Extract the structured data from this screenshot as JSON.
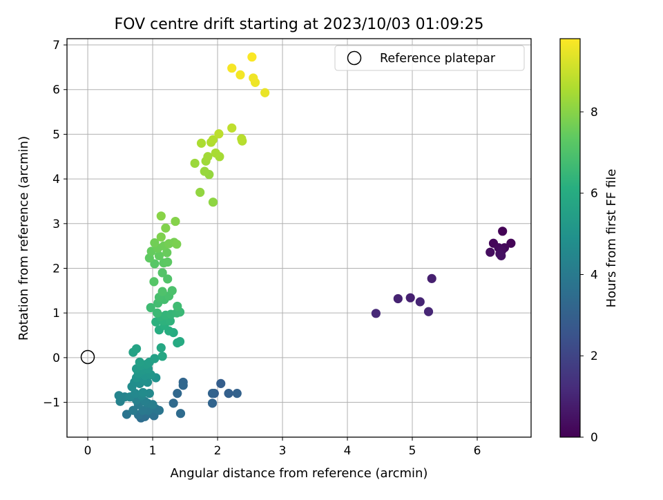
{
  "chart_data": {
    "type": "scatter",
    "title": "FOV centre drift starting at 2023/10/03 01:09:25",
    "xlabel": "Angular distance from reference (arcmin)",
    "ylabel": "Rotation from reference (arcmin)",
    "xlim": [
      -0.32,
      6.83
    ],
    "ylim": [
      -1.78,
      7.14
    ],
    "xticks": [
      {
        "v": 0,
        "label": "0"
      },
      {
        "v": 1,
        "label": "1"
      },
      {
        "v": 2,
        "label": "2"
      },
      {
        "v": 3,
        "label": "3"
      },
      {
        "v": 4,
        "label": "4"
      },
      {
        "v": 5,
        "label": "5"
      },
      {
        "v": 6,
        "label": "6"
      }
    ],
    "yticks": [
      {
        "v": -1,
        "label": "−1"
      },
      {
        "v": 0,
        "label": "0"
      },
      {
        "v": 1,
        "label": "1"
      },
      {
        "v": 2,
        "label": "2"
      },
      {
        "v": 3,
        "label": "3"
      },
      {
        "v": 4,
        "label": "4"
      },
      {
        "v": 5,
        "label": "5"
      },
      {
        "v": 6,
        "label": "6"
      },
      {
        "v": 7,
        "label": "7"
      }
    ],
    "grid": true,
    "legend": {
      "position": "top-right",
      "label": "Reference platepar"
    },
    "reference_point": {
      "x": 0,
      "y": 0
    },
    "colorbar": {
      "label": "Hours from first FF file",
      "colormap": "viridis",
      "range": [
        0,
        9.8
      ],
      "ticks": [
        {
          "v": 0,
          "label": "0"
        },
        {
          "v": 2,
          "label": "2"
        },
        {
          "v": 4,
          "label": "4"
        },
        {
          "v": 6,
          "label": "6"
        },
        {
          "v": 8,
          "label": "8"
        }
      ]
    },
    "points": [
      {
        "x": 6.39,
        "y": 2.83,
        "t": 0.05
      },
      {
        "x": 6.52,
        "y": 2.56,
        "t": 0.1
      },
      {
        "x": 6.25,
        "y": 2.56,
        "t": 0.15
      },
      {
        "x": 6.42,
        "y": 2.46,
        "t": 0.2
      },
      {
        "x": 6.33,
        "y": 2.46,
        "t": 0.25
      },
      {
        "x": 6.38,
        "y": 2.4,
        "t": 0.3
      },
      {
        "x": 6.2,
        "y": 2.36,
        "t": 0.35
      },
      {
        "x": 6.35,
        "y": 2.32,
        "t": 0.4
      },
      {
        "x": 6.37,
        "y": 2.28,
        "t": 0.45
      },
      {
        "x": 5.3,
        "y": 1.77,
        "t": 0.85
      },
      {
        "x": 4.97,
        "y": 1.34,
        "t": 0.9
      },
      {
        "x": 4.78,
        "y": 1.32,
        "t": 0.95
      },
      {
        "x": 5.12,
        "y": 1.25,
        "t": 1.0
      },
      {
        "x": 5.25,
        "y": 1.03,
        "t": 1.05
      },
      {
        "x": 4.44,
        "y": 0.99,
        "t": 1.1
      },
      {
        "x": 2.05,
        "y": -0.58,
        "t": 2.9
      },
      {
        "x": 1.95,
        "y": -0.8,
        "t": 2.95
      },
      {
        "x": 2.17,
        "y": -0.8,
        "t": 3.0
      },
      {
        "x": 2.3,
        "y": -0.8,
        "t": 3.05
      },
      {
        "x": 1.92,
        "y": -0.8,
        "t": 3.1
      },
      {
        "x": 1.92,
        "y": -1.02,
        "t": 3.15
      },
      {
        "x": 1.47,
        "y": -0.55,
        "t": 3.2
      },
      {
        "x": 1.47,
        "y": -0.62,
        "t": 3.25
      },
      {
        "x": 1.38,
        "y": -0.8,
        "t": 3.3
      },
      {
        "x": 1.32,
        "y": -1.02,
        "t": 3.35
      },
      {
        "x": 1.43,
        "y": -1.25,
        "t": 3.4
      },
      {
        "x": 0.82,
        "y": -1.35,
        "t": 3.5
      },
      {
        "x": 0.88,
        "y": -1.32,
        "t": 3.55
      },
      {
        "x": 1.02,
        "y": -1.3,
        "t": 3.6
      },
      {
        "x": 0.97,
        "y": -1.25,
        "t": 3.65
      },
      {
        "x": 0.78,
        "y": -1.28,
        "t": 3.7
      },
      {
        "x": 0.6,
        "y": -1.27,
        "t": 3.75
      },
      {
        "x": 1.1,
        "y": -1.18,
        "t": 3.8
      },
      {
        "x": 1.05,
        "y": -1.15,
        "t": 3.85
      },
      {
        "x": 0.93,
        "y": -1.18,
        "t": 3.9
      },
      {
        "x": 0.85,
        "y": -1.18,
        "t": 3.95
      },
      {
        "x": 0.7,
        "y": -1.18,
        "t": 4.0
      },
      {
        "x": 0.78,
        "y": -1.05,
        "t": 4.05
      },
      {
        "x": 0.92,
        "y": -1.02,
        "t": 4.1
      },
      {
        "x": 1.0,
        "y": -1.05,
        "t": 4.15
      },
      {
        "x": 0.88,
        "y": -0.98,
        "t": 4.2
      },
      {
        "x": 0.75,
        "y": -0.95,
        "t": 4.25
      },
      {
        "x": 0.5,
        "y": -0.98,
        "t": 4.3
      },
      {
        "x": 0.57,
        "y": -0.88,
        "t": 4.35
      },
      {
        "x": 0.48,
        "y": -0.85,
        "t": 4.4
      },
      {
        "x": 0.65,
        "y": -0.88,
        "t": 4.45
      },
      {
        "x": 0.83,
        "y": -0.85,
        "t": 4.5
      },
      {
        "x": 0.73,
        "y": -0.8,
        "t": 4.55
      },
      {
        "x": 0.95,
        "y": -0.8,
        "t": 4.6
      },
      {
        "x": 0.85,
        "y": -0.78,
        "t": 4.65
      },
      {
        "x": 0.68,
        "y": -0.65,
        "t": 4.7
      },
      {
        "x": 0.72,
        "y": -0.55,
        "t": 4.75
      },
      {
        "x": 0.8,
        "y": -0.58,
        "t": 4.8
      },
      {
        "x": 0.92,
        "y": -0.55,
        "t": 4.85
      },
      {
        "x": 0.85,
        "y": -0.48,
        "t": 4.9
      },
      {
        "x": 1.05,
        "y": -0.45,
        "t": 4.95
      },
      {
        "x": 0.75,
        "y": -0.45,
        "t": 5.0
      },
      {
        "x": 0.88,
        "y": -0.4,
        "t": 5.05
      },
      {
        "x": 0.97,
        "y": -0.38,
        "t": 5.1
      },
      {
        "x": 0.78,
        "y": -0.35,
        "t": 5.15
      },
      {
        "x": 0.85,
        "y": -0.28,
        "t": 5.2
      },
      {
        "x": 0.93,
        "y": -0.25,
        "t": 5.25
      },
      {
        "x": 0.75,
        "y": -0.25,
        "t": 5.3
      },
      {
        "x": 0.82,
        "y": -0.18,
        "t": 5.35
      },
      {
        "x": 0.9,
        "y": -0.15,
        "t": 5.4
      },
      {
        "x": 0.95,
        "y": -0.1,
        "t": 5.45
      },
      {
        "x": 0.8,
        "y": -0.1,
        "t": 5.5
      },
      {
        "x": 1.03,
        "y": -0.02,
        "t": 5.55
      },
      {
        "x": 0.7,
        "y": 0.12,
        "t": 5.6
      },
      {
        "x": 0.75,
        "y": 0.2,
        "t": 5.65
      },
      {
        "x": 1.15,
        "y": 0.03,
        "t": 5.8
      },
      {
        "x": 1.13,
        "y": 0.22,
        "t": 5.85
      },
      {
        "x": 1.38,
        "y": 0.33,
        "t": 5.9
      },
      {
        "x": 1.42,
        "y": 0.36,
        "t": 5.95
      },
      {
        "x": 1.32,
        "y": 0.56,
        "t": 6.0
      },
      {
        "x": 1.1,
        "y": 0.62,
        "t": 6.05
      },
      {
        "x": 1.25,
        "y": 0.6,
        "t": 6.1
      },
      {
        "x": 1.18,
        "y": 0.72,
        "t": 6.15
      },
      {
        "x": 1.05,
        "y": 0.8,
        "t": 6.2
      },
      {
        "x": 1.17,
        "y": 0.82,
        "t": 6.25
      },
      {
        "x": 1.27,
        "y": 0.82,
        "t": 6.3
      },
      {
        "x": 1.12,
        "y": 0.92,
        "t": 6.35
      },
      {
        "x": 1.2,
        "y": 0.95,
        "t": 6.4
      },
      {
        "x": 1.28,
        "y": 0.97,
        "t": 6.45
      },
      {
        "x": 1.37,
        "y": 1.0,
        "t": 6.5
      },
      {
        "x": 1.42,
        "y": 1.02,
        "t": 6.55
      },
      {
        "x": 1.07,
        "y": 1.0,
        "t": 6.6
      },
      {
        "x": 0.97,
        "y": 1.12,
        "t": 6.65
      },
      {
        "x": 1.38,
        "y": 1.15,
        "t": 6.7
      },
      {
        "x": 1.08,
        "y": 1.22,
        "t": 6.75
      },
      {
        "x": 1.18,
        "y": 1.3,
        "t": 6.8
      },
      {
        "x": 1.1,
        "y": 1.35,
        "t": 6.85
      },
      {
        "x": 1.25,
        "y": 1.38,
        "t": 6.9
      },
      {
        "x": 1.3,
        "y": 1.5,
        "t": 6.95
      },
      {
        "x": 1.15,
        "y": 1.48,
        "t": 7.0
      },
      {
        "x": 1.23,
        "y": 1.76,
        "t": 7.05
      },
      {
        "x": 1.15,
        "y": 1.9,
        "t": 7.1
      },
      {
        "x": 1.02,
        "y": 1.7,
        "t": 7.15
      },
      {
        "x": 1.03,
        "y": 2.1,
        "t": 7.2
      },
      {
        "x": 1.17,
        "y": 2.12,
        "t": 7.25
      },
      {
        "x": 1.23,
        "y": 2.14,
        "t": 7.3
      },
      {
        "x": 0.95,
        "y": 2.23,
        "t": 7.35
      },
      {
        "x": 1.1,
        "y": 2.28,
        "t": 7.4
      },
      {
        "x": 0.98,
        "y": 2.38,
        "t": 7.45
      },
      {
        "x": 1.22,
        "y": 2.35,
        "t": 7.5
      },
      {
        "x": 1.08,
        "y": 2.45,
        "t": 7.55
      },
      {
        "x": 1.17,
        "y": 2.5,
        "t": 7.6
      },
      {
        "x": 1.03,
        "y": 2.57,
        "t": 7.65
      },
      {
        "x": 1.25,
        "y": 2.55,
        "t": 7.7
      },
      {
        "x": 1.33,
        "y": 2.58,
        "t": 7.75
      },
      {
        "x": 1.37,
        "y": 2.54,
        "t": 7.8
      },
      {
        "x": 1.13,
        "y": 2.7,
        "t": 7.85
      },
      {
        "x": 1.2,
        "y": 2.9,
        "t": 7.9
      },
      {
        "x": 1.35,
        "y": 3.05,
        "t": 7.95
      },
      {
        "x": 1.13,
        "y": 3.17,
        "t": 8.0
      },
      {
        "x": 1.93,
        "y": 3.48,
        "t": 8.1
      },
      {
        "x": 1.73,
        "y": 3.7,
        "t": 8.15
      },
      {
        "x": 1.87,
        "y": 4.1,
        "t": 8.2
      },
      {
        "x": 1.8,
        "y": 4.17,
        "t": 8.25
      },
      {
        "x": 1.65,
        "y": 4.35,
        "t": 8.3
      },
      {
        "x": 1.82,
        "y": 4.4,
        "t": 8.35
      },
      {
        "x": 1.85,
        "y": 4.5,
        "t": 8.4
      },
      {
        "x": 2.03,
        "y": 4.5,
        "t": 8.45
      },
      {
        "x": 1.97,
        "y": 4.58,
        "t": 8.5
      },
      {
        "x": 1.75,
        "y": 4.8,
        "t": 8.55
      },
      {
        "x": 1.9,
        "y": 4.82,
        "t": 8.6
      },
      {
        "x": 1.93,
        "y": 4.88,
        "t": 8.65
      },
      {
        "x": 2.38,
        "y": 4.85,
        "t": 8.7
      },
      {
        "x": 2.37,
        "y": 4.9,
        "t": 8.75
      },
      {
        "x": 2.02,
        "y": 5.01,
        "t": 8.8
      },
      {
        "x": 2.22,
        "y": 5.14,
        "t": 8.85
      },
      {
        "x": 2.73,
        "y": 5.93,
        "t": 9.5
      },
      {
        "x": 2.58,
        "y": 6.16,
        "t": 9.55
      },
      {
        "x": 2.55,
        "y": 6.26,
        "t": 9.6
      },
      {
        "x": 2.35,
        "y": 6.33,
        "t": 9.65
      },
      {
        "x": 2.22,
        "y": 6.48,
        "t": 9.7
      },
      {
        "x": 2.53,
        "y": 6.73,
        "t": 9.75
      }
    ]
  }
}
